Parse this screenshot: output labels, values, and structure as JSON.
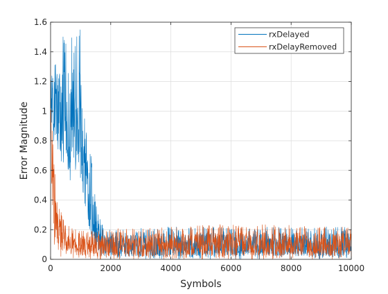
{
  "chart_data": {
    "type": "line",
    "xlabel": "Symbols",
    "ylabel": "Error Magnitude",
    "xlim": [
      0,
      10000
    ],
    "ylim": [
      0,
      1.6
    ],
    "xticks": [
      0,
      2000,
      4000,
      6000,
      8000,
      10000
    ],
    "xtick_labels": [
      "0",
      "2000",
      "4000",
      "6000",
      "8000",
      "10000"
    ],
    "yticks": [
      0,
      0.2,
      0.4,
      0.6,
      0.8,
      1,
      1.2,
      1.4,
      1.6
    ],
    "ytick_labels": [
      "0",
      "0.2",
      "0.4",
      "0.6",
      "0.8",
      "1",
      "1.2",
      "1.4",
      "1.6"
    ],
    "grid": true,
    "legend_location": "top-right",
    "series": [
      {
        "name": "rxDelayed",
        "color": "#0072BD",
        "x": [
          0,
          100,
          200,
          400,
          600,
          800,
          1000,
          1100,
          1200,
          1300,
          1400,
          1500,
          1600,
          1700,
          1800,
          2000,
          4000,
          6000,
          8000,
          10000
        ],
        "y_max": [
          1.2,
          1.3,
          1.45,
          1.5,
          1.52,
          1.5,
          1.57,
          1.0,
          0.9,
          0.8,
          0.6,
          0.4,
          0.3,
          0.25,
          0.2,
          0.2,
          0.22,
          0.22,
          0.22,
          0.22
        ],
        "y_min": [
          0.85,
          0.75,
          0.65,
          0.55,
          0.5,
          0.5,
          0.5,
          0.3,
          0.25,
          0.12,
          0.08,
          0.05,
          0.02,
          0.01,
          0.0,
          0.0,
          0.0,
          0.0,
          0.0,
          0.0
        ]
      },
      {
        "name": "rxDelayRemoved",
        "color": "#D95319",
        "x": [
          0,
          50,
          100,
          150,
          200,
          300,
          400,
          500,
          700,
          1000,
          1500,
          2000,
          4000,
          6000,
          8000,
          10000
        ],
        "y_max": [
          1.05,
          0.95,
          0.75,
          0.6,
          0.45,
          0.35,
          0.3,
          0.25,
          0.22,
          0.2,
          0.2,
          0.21,
          0.22,
          0.24,
          0.23,
          0.22
        ],
        "y_min": [
          0.95,
          0.3,
          0.1,
          0.05,
          0.03,
          0.02,
          0.01,
          0.01,
          0.01,
          0.0,
          0.0,
          0.0,
          0.0,
          0.0,
          0.0,
          0.0
        ]
      }
    ]
  }
}
